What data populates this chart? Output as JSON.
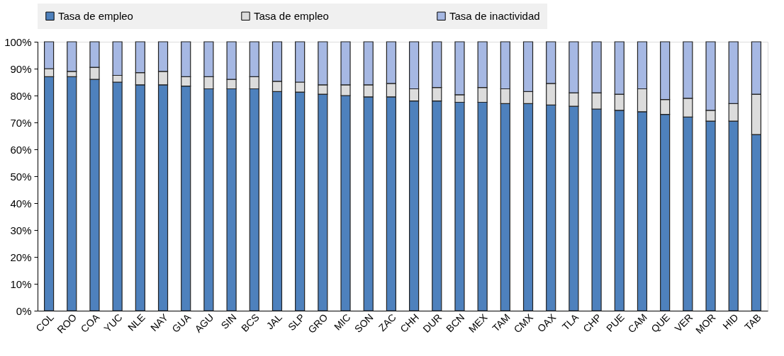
{
  "chart_data": {
    "type": "bar",
    "stacked": true,
    "legend": "top",
    "grid": false,
    "categories": [
      "COL",
      "ROO",
      "COA",
      "YUC",
      "NLE",
      "NAY",
      "GUA",
      "AGU",
      "SIN",
      "BCS",
      "JAL",
      "SLP",
      "GRO",
      "MIC",
      "SON",
      "ZAC",
      "CHH",
      "DUR",
      "BCN",
      "MEX",
      "TAM",
      "CMX",
      "OAX",
      "TLA",
      "CHP",
      "PUE",
      "CAM",
      "QUE",
      "VER",
      "MOR",
      "HID",
      "TAB"
    ],
    "series": [
      {
        "name": "Tasa de empleo",
        "color": "#4e81bd",
        "values": [
          87,
          87,
          86,
          85,
          84,
          84,
          83.5,
          82.5,
          82.5,
          82.5,
          81.5,
          81.3,
          80.5,
          80,
          79.5,
          79.5,
          78,
          78,
          77.5,
          77.5,
          77,
          77,
          76.5,
          76,
          75,
          74.5,
          74,
          73,
          72,
          70.5,
          70.5,
          65.5
        ]
      },
      {
        "name": "Tasa de empleo",
        "color": "#dcdcdc",
        "values": [
          3,
          2,
          4.5,
          2.5,
          4.5,
          5,
          3.5,
          4.5,
          3.5,
          4.5,
          3.8,
          3.7,
          3.5,
          4,
          4.5,
          5,
          4.5,
          5,
          2.8,
          5.5,
          5.5,
          4.5,
          8,
          5,
          6,
          6,
          8.5,
          5.5,
          7,
          4,
          6.5,
          15
        ]
      },
      {
        "name": "Tasa de inactividad",
        "color": "#a6b8e3",
        "values": [
          10,
          11,
          9.5,
          12.5,
          11.5,
          11,
          13,
          13,
          14,
          13,
          14.7,
          15,
          16,
          16,
          16,
          15.5,
          17.5,
          17,
          19.7,
          17,
          17.5,
          18.5,
          15.5,
          19,
          19,
          19.5,
          17.5,
          21.5,
          21,
          25.5,
          23,
          19.5
        ]
      }
    ],
    "ylim": [
      0,
      100
    ],
    "yticks": [
      {
        "value": 0,
        "label": "0%"
      },
      {
        "value": 10,
        "label": "10%"
      },
      {
        "value": 20,
        "label": "20%"
      },
      {
        "value": 30,
        "label": "30%"
      },
      {
        "value": 40,
        "label": "40%"
      },
      {
        "value": 50,
        "label": "50%"
      },
      {
        "value": 60,
        "label": "60%"
      },
      {
        "value": 70,
        "label": "70%"
      },
      {
        "value": 80,
        "label": "80%"
      },
      {
        "value": 90,
        "label": "90%"
      },
      {
        "value": 100,
        "label": "100%"
      }
    ]
  }
}
